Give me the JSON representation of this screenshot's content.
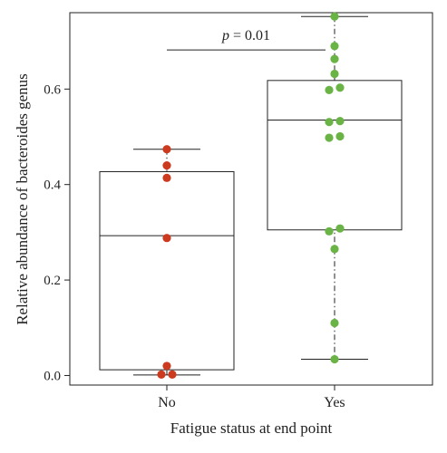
{
  "chart_data": {
    "type": "box",
    "xlabel": "Fatigue status at end point",
    "ylabel": "Relative abundance of bacteroides genus",
    "ylim": [
      -0.02,
      0.76
    ],
    "yticks": [
      0.0,
      0.2,
      0.4,
      0.6
    ],
    "ytick_labels": [
      "0.0",
      "0.2",
      "0.4",
      "0.6"
    ],
    "categories": [
      "No",
      "Yes"
    ],
    "groups": [
      {
        "category": "No",
        "color": "#cc3a1f",
        "box": {
          "whisker_low": 0.001,
          "q1": 0.012,
          "median": 0.293,
          "q3": 0.427,
          "whisker_high": 0.474
        },
        "points": [
          {
            "y": 0.474,
            "jitter": 0
          },
          {
            "y": 0.44,
            "jitter": 0
          },
          {
            "y": 0.414,
            "jitter": 0
          },
          {
            "y": 0.288,
            "jitter": 0
          },
          {
            "y": 0.02,
            "jitter": 0
          },
          {
            "y": 0.002,
            "jitter": -1
          },
          {
            "y": 0.002,
            "jitter": 1
          }
        ]
      },
      {
        "category": "Yes",
        "color": "#6ab446",
        "box": {
          "whisker_low": 0.034,
          "q1": 0.305,
          "median": 0.535,
          "q3": 0.618,
          "whisker_high": 0.752
        },
        "points": [
          {
            "y": 0.752,
            "jitter": 0
          },
          {
            "y": 0.69,
            "jitter": 0
          },
          {
            "y": 0.663,
            "jitter": 0
          },
          {
            "y": 0.632,
            "jitter": 0
          },
          {
            "y": 0.603,
            "jitter": 1
          },
          {
            "y": 0.598,
            "jitter": -1
          },
          {
            "y": 0.533,
            "jitter": 1
          },
          {
            "y": 0.531,
            "jitter": -1
          },
          {
            "y": 0.501,
            "jitter": 1
          },
          {
            "y": 0.498,
            "jitter": -1
          },
          {
            "y": 0.308,
            "jitter": 1
          },
          {
            "y": 0.302,
            "jitter": -1
          },
          {
            "y": 0.265,
            "jitter": 0
          },
          {
            "y": 0.11,
            "jitter": 0
          },
          {
            "y": 0.034,
            "jitter": 0
          }
        ]
      }
    ],
    "annotation": {
      "prefix": "p",
      "text": " = 0.01",
      "y": 0.682
    }
  }
}
